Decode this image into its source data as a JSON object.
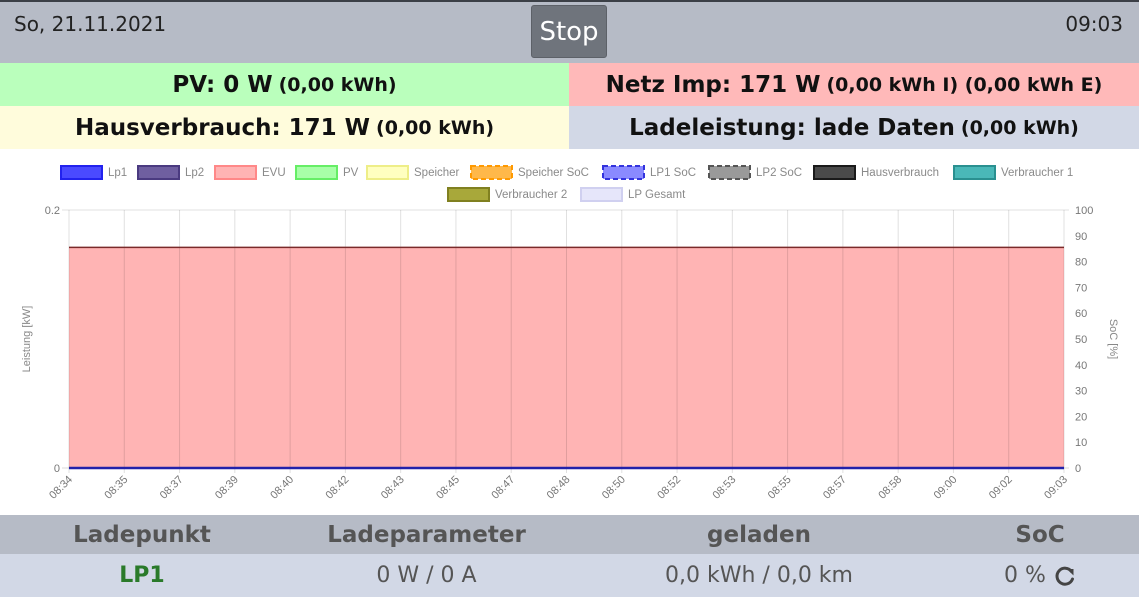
{
  "header": {
    "date": "So, 21.11.2021",
    "stop_label": "Stop",
    "time": "09:03"
  },
  "tiles": {
    "pv": {
      "main": "PV: 0 W",
      "sub": "(0,00 kWh)",
      "color": "#baffbc"
    },
    "netz": {
      "main": "Netz Imp: 171 W",
      "sub": "(0,00 kWh I) (0,00 kWh E)",
      "color": "#ffb9b9"
    },
    "haus": {
      "main": "Hausverbrauch: 171 W",
      "sub": "(0,00 kWh)",
      "color": "#fffcdc"
    },
    "lade": {
      "main": "Ladeleistung: lade Daten",
      "sub": "(0,00 kWh)",
      "color": "#d2d8e6"
    }
  },
  "chart_data": {
    "type": "area",
    "legend_position": "top",
    "grid": true,
    "legend": [
      {
        "name": "Lp1",
        "color": "#4a4aff",
        "border": "#2222ee",
        "dashed": false
      },
      {
        "name": "Lp2",
        "color": "#6f5fa0",
        "border": "#4a3a80",
        "dashed": false
      },
      {
        "name": "EVU",
        "color": "#ffb4b4",
        "border": "#ff8888",
        "dashed": false
      },
      {
        "name": "PV",
        "color": "#a8ffa8",
        "border": "#66ee66",
        "dashed": false
      },
      {
        "name": "Speicher",
        "color": "#ffffc0",
        "border": "#eeee88",
        "dashed": false
      },
      {
        "name": "Speicher SoC",
        "color": "#ffb84a",
        "border": "#ff9900",
        "dashed": true
      },
      {
        "name": "LP1 SoC",
        "color": "#8a8aff",
        "border": "#3333dd",
        "dashed": true
      },
      {
        "name": "LP2 SoC",
        "color": "#9a9a9a",
        "border": "#555555",
        "dashed": true
      },
      {
        "name": "Hausverbrauch",
        "color": "#4a4a4a",
        "border": "#1a1a1a",
        "dashed": false
      },
      {
        "name": "Verbraucher 1",
        "color": "#4ab8b8",
        "border": "#2a9090",
        "dashed": false
      },
      {
        "name": "Verbraucher 2",
        "color": "#a8a83a",
        "border": "#808020",
        "dashed": false
      },
      {
        "name": "LP Gesamt",
        "color": "#e6e6fa",
        "border": "#d0d0f0",
        "dashed": false
      }
    ],
    "x": [
      "08:34",
      "08:35",
      "08:37",
      "08:39",
      "08:40",
      "08:42",
      "08:43",
      "08:45",
      "08:47",
      "08:48",
      "08:50",
      "08:52",
      "08:53",
      "08:55",
      "08:57",
      "08:58",
      "09:00",
      "09:02",
      "09:03"
    ],
    "ylabel": "Leistung [kW]",
    "ylim": [
      0,
      0.2
    ],
    "y_ticks": [
      "0.2",
      "0"
    ],
    "y2label": "SoC [%]",
    "y2lim": [
      0,
      100
    ],
    "y2_ticks": [
      "100",
      "90",
      "80",
      "70",
      "60",
      "50",
      "40",
      "30",
      "20",
      "10",
      "0"
    ],
    "series": [
      {
        "name": "EVU",
        "values": [
          0.171,
          0.171,
          0.171,
          0.171,
          0.171,
          0.171,
          0.171,
          0.171,
          0.171,
          0.171,
          0.171,
          0.171,
          0.171,
          0.171,
          0.171,
          0.171,
          0.171,
          0.171,
          0.171
        ],
        "fill": "#ffb4b4",
        "line": "#7a2a2a"
      },
      {
        "name": "Lp1",
        "values": [
          0,
          0,
          0,
          0,
          0,
          0,
          0,
          0,
          0,
          0,
          0,
          0,
          0,
          0,
          0,
          0,
          0,
          0,
          0
        ],
        "fill": "none",
        "line": "#2222aa"
      }
    ]
  },
  "table": {
    "headers": [
      "Ladepunkt",
      "Ladeparameter",
      "geladen",
      "SoC"
    ],
    "rows": [
      {
        "name": "LP1",
        "params": "0 W / 0 A",
        "charged": "0,0 kWh / 0,0 km",
        "soc": "0 %"
      }
    ]
  }
}
